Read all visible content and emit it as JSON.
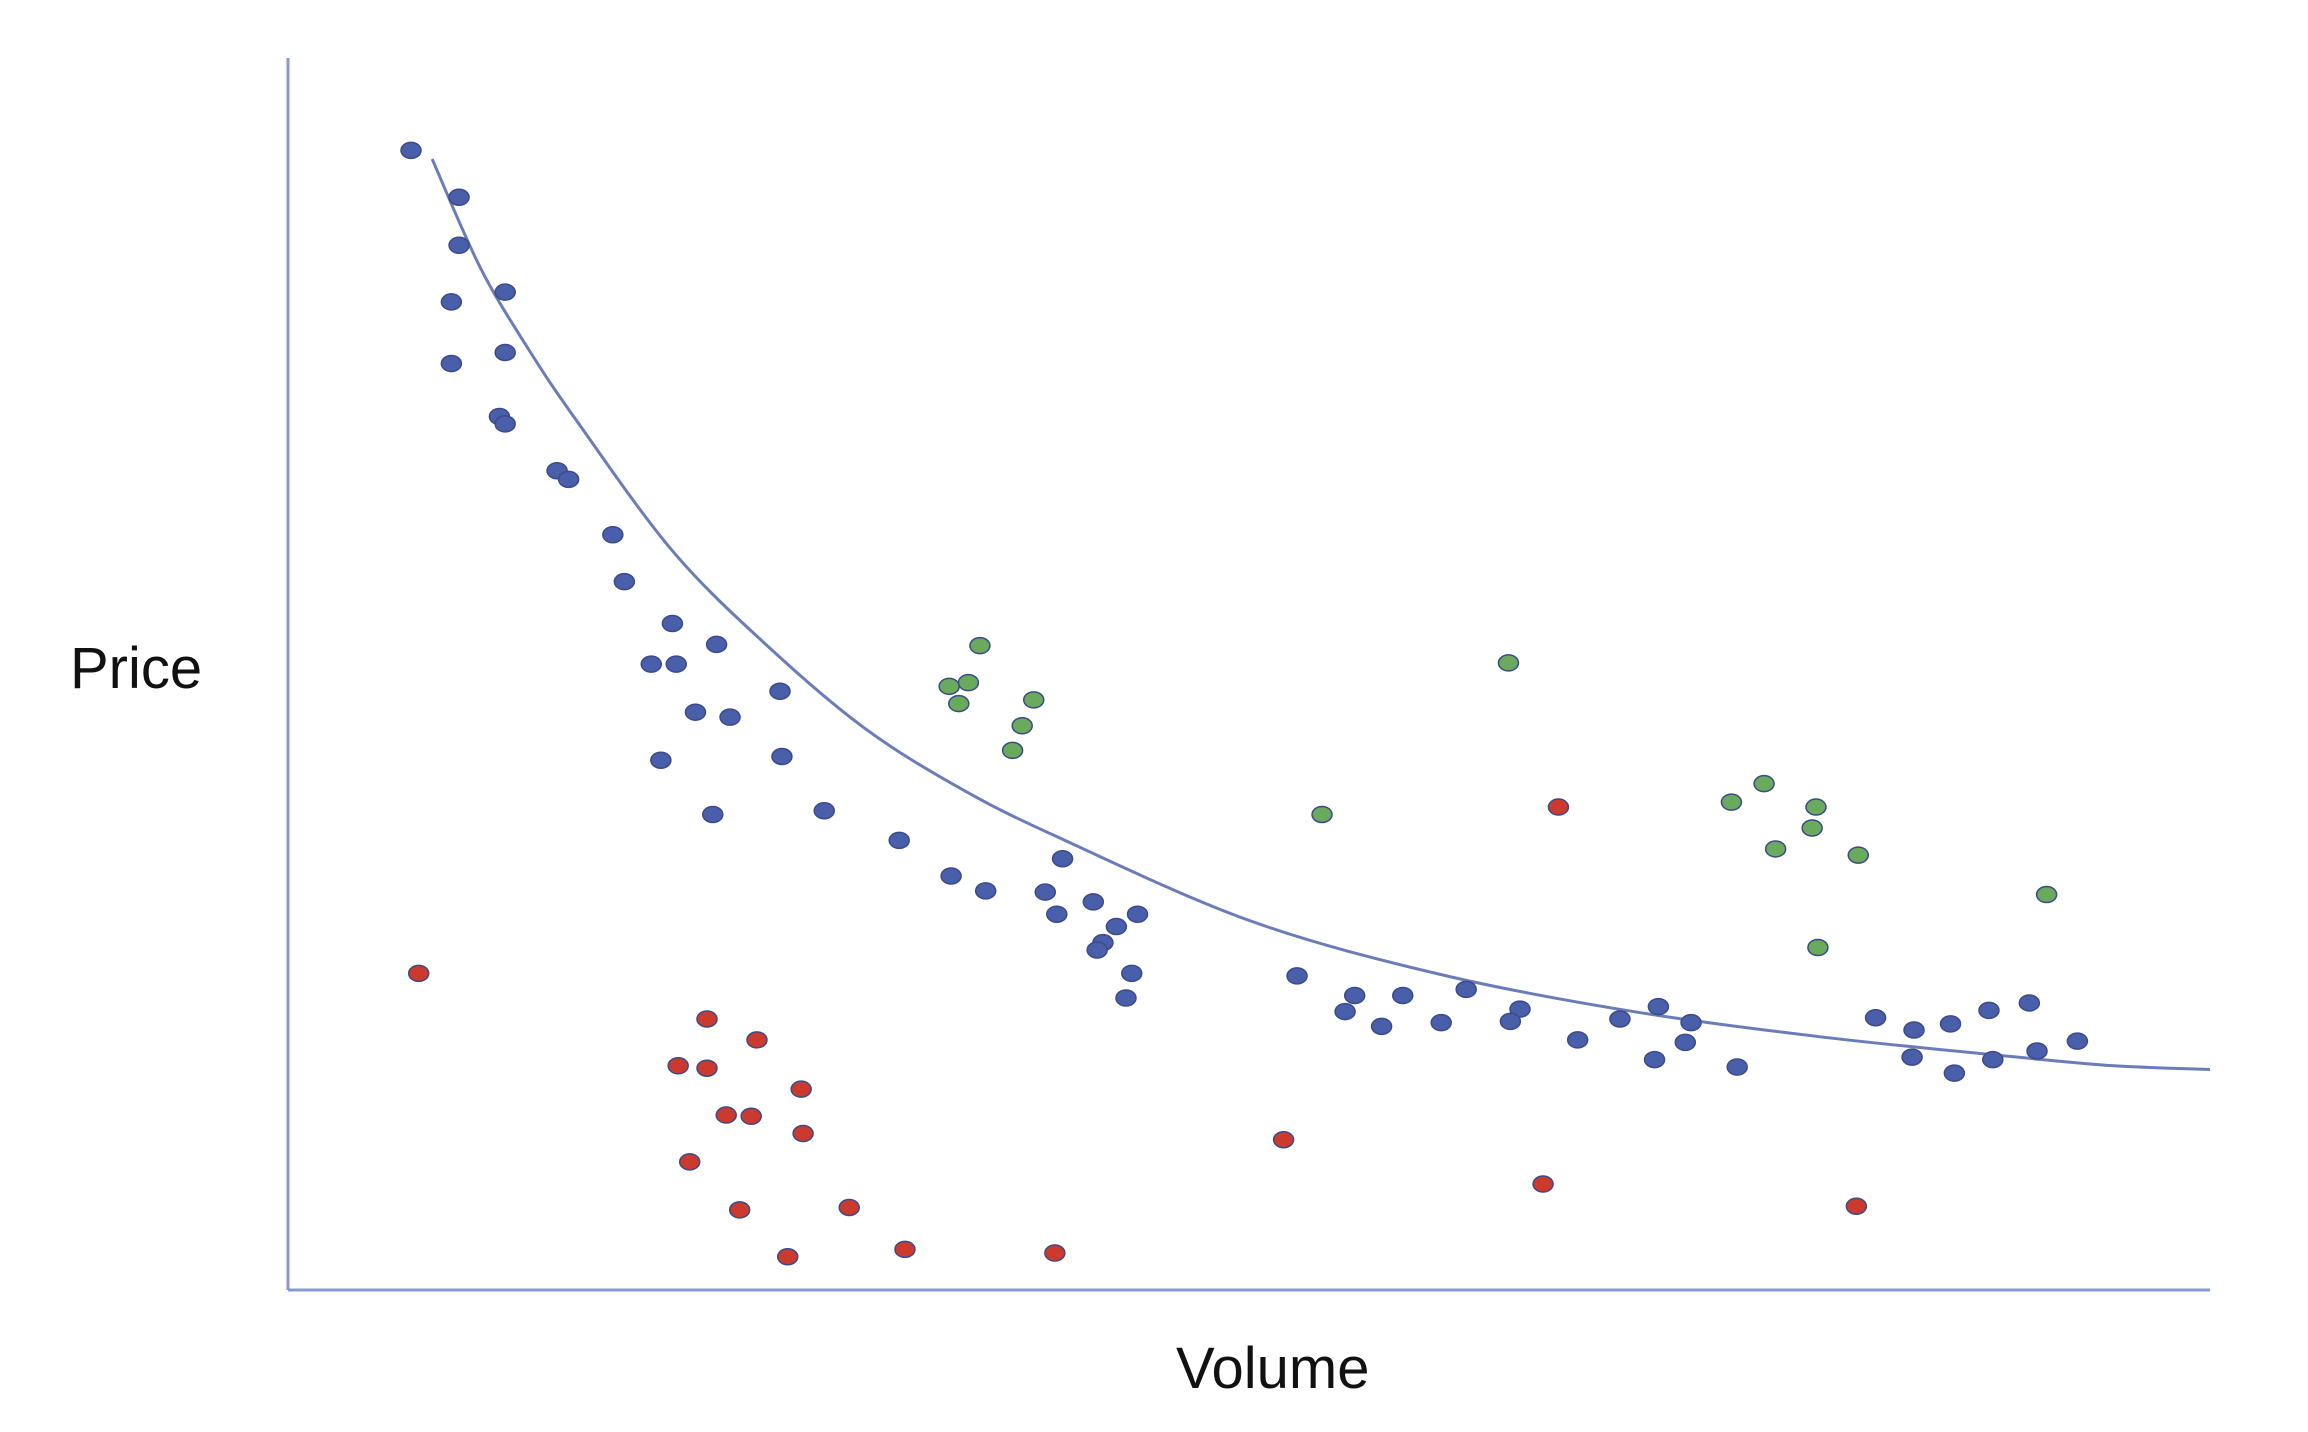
{
  "chart_data": {
    "type": "scatter",
    "title": "",
    "xlabel": "Volume",
    "ylabel": "Price",
    "xlim": [
      0,
      100
    ],
    "ylim": [
      0,
      100
    ],
    "grid": false,
    "legend": "none",
    "colors": {
      "axis": "#8a98d0",
      "curve": "#6b7db8",
      "blue": "#4a5faa",
      "green": "#6aaa5c",
      "red": "#cc3a2e",
      "outline": "#3b4a8a"
    },
    "trend_curve": {
      "type": "line",
      "x": [
        7.5,
        10,
        12.5,
        15,
        20,
        25,
        30,
        35,
        40,
        50,
        60,
        70,
        80,
        90,
        95,
        100
      ],
      "y": [
        91.8,
        83.0,
        76.4,
        70.6,
        60.0,
        52.2,
        45.6,
        40.7,
        36.8,
        30.0,
        25.6,
        22.6,
        20.5,
        18.9,
        18.2,
        17.9
      ]
    },
    "series": [
      {
        "color": "blue",
        "points": [
          [
            6.4,
            92.5
          ],
          [
            8.9,
            88.7
          ],
          [
            8.9,
            84.8
          ],
          [
            8.5,
            80.2
          ],
          [
            11.3,
            81.0
          ],
          [
            8.5,
            75.2
          ],
          [
            11.3,
            76.1
          ],
          [
            11.0,
            70.9
          ],
          [
            11.3,
            70.3
          ],
          [
            14.0,
            66.5
          ],
          [
            14.6,
            65.8
          ],
          [
            16.9,
            61.3
          ],
          [
            17.5,
            57.5
          ],
          [
            20.0,
            54.1
          ],
          [
            22.3,
            52.4
          ],
          [
            18.9,
            50.8
          ],
          [
            20.2,
            50.8
          ],
          [
            21.2,
            46.9
          ],
          [
            23.0,
            46.5
          ],
          [
            25.6,
            48.6
          ],
          [
            19.4,
            43.0
          ],
          [
            25.7,
            43.3
          ],
          [
            22.1,
            38.6
          ],
          [
            27.9,
            38.9
          ],
          [
            31.8,
            36.5
          ],
          [
            34.5,
            33.6
          ],
          [
            36.3,
            32.4
          ],
          [
            40.3,
            35.0
          ],
          [
            39.4,
            32.3
          ],
          [
            44.2,
            30.5
          ],
          [
            40.0,
            30.5
          ],
          [
            41.9,
            31.5
          ],
          [
            43.1,
            29.5
          ],
          [
            42.4,
            28.2
          ],
          [
            42.1,
            27.6
          ],
          [
            43.9,
            25.7
          ],
          [
            43.6,
            23.7
          ],
          [
            52.5,
            25.5
          ],
          [
            55.5,
            23.9
          ],
          [
            55.0,
            22.6
          ],
          [
            58.0,
            23.9
          ],
          [
            56.9,
            21.4
          ],
          [
            61.3,
            24.4
          ],
          [
            60.0,
            21.7
          ],
          [
            64.1,
            22.8
          ],
          [
            63.6,
            21.8
          ],
          [
            67.1,
            20.3
          ],
          [
            69.3,
            22.0
          ],
          [
            71.3,
            23.0
          ],
          [
            71.1,
            18.7
          ],
          [
            73.0,
            21.7
          ],
          [
            72.7,
            20.1
          ],
          [
            75.4,
            18.1
          ],
          [
            82.6,
            22.1
          ],
          [
            84.6,
            21.1
          ],
          [
            86.5,
            21.6
          ],
          [
            88.5,
            22.7
          ],
          [
            90.6,
            23.3
          ],
          [
            84.5,
            18.9
          ],
          [
            86.7,
            17.6
          ],
          [
            88.7,
            18.7
          ],
          [
            91.0,
            19.4
          ],
          [
            93.1,
            20.2
          ]
        ]
      },
      {
        "color": "green",
        "points": [
          [
            36.0,
            52.3
          ],
          [
            35.4,
            49.3
          ],
          [
            34.4,
            49.0
          ],
          [
            34.9,
            47.6
          ],
          [
            38.8,
            47.9
          ],
          [
            38.2,
            45.8
          ],
          [
            37.7,
            43.8
          ],
          [
            53.8,
            38.6
          ],
          [
            63.5,
            50.9
          ],
          [
            76.8,
            41.1
          ],
          [
            75.1,
            39.6
          ],
          [
            79.5,
            39.2
          ],
          [
            79.3,
            37.5
          ],
          [
            77.4,
            35.8
          ],
          [
            81.7,
            35.3
          ],
          [
            79.6,
            27.8
          ],
          [
            91.5,
            32.1
          ]
        ]
      },
      {
        "color": "red",
        "points": [
          [
            6.8,
            25.7
          ],
          [
            66.1,
            39.2
          ],
          [
            21.8,
            22.0
          ],
          [
            24.4,
            20.3
          ],
          [
            20.3,
            18.2
          ],
          [
            21.8,
            18.0
          ],
          [
            26.7,
            16.3
          ],
          [
            22.8,
            14.2
          ],
          [
            24.1,
            14.1
          ],
          [
            26.8,
            12.7
          ],
          [
            20.9,
            10.4
          ],
          [
            23.5,
            6.5
          ],
          [
            29.2,
            6.7
          ],
          [
            26.0,
            2.7
          ],
          [
            32.1,
            3.3
          ],
          [
            39.9,
            3.0
          ],
          [
            51.8,
            12.2
          ],
          [
            65.3,
            8.6
          ],
          [
            81.6,
            6.8
          ]
        ]
      }
    ]
  }
}
